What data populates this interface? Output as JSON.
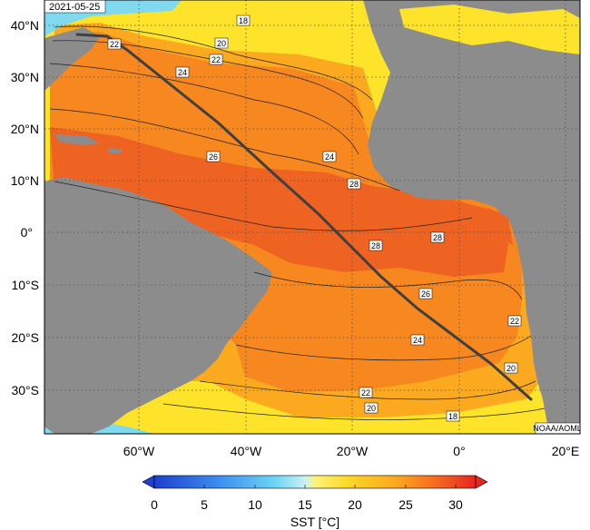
{
  "map": {
    "date_label": "2021-05-25",
    "credit": "NOAA/AOML",
    "lat_labels": [
      "40°N",
      "30°N",
      "20°N",
      "10°N",
      "0°",
      "10°S",
      "20°S",
      "30°S"
    ],
    "lon_labels": [
      "60°W",
      "40°W",
      "20°W",
      "0°",
      "20°E"
    ],
    "isotherm_labels": [
      "18",
      "20",
      "22",
      "24",
      "26",
      "24",
      "28",
      "28",
      "28",
      "26",
      "24",
      "22",
      "20",
      "22",
      "20",
      "18",
      "22"
    ],
    "colorbar": {
      "title": "SST [°C]",
      "ticks": [
        "0",
        "5",
        "10",
        "15",
        "20",
        "25",
        "30"
      ],
      "range": [
        0,
        32
      ]
    },
    "colors": {
      "land": "#8c8c8c",
      "warmest": "#ee4a22",
      "warm": "#f7781f",
      "mid": "#fba91f",
      "cool": "#fde32a",
      "cold": "#7fd9ef",
      "track": "#404040"
    }
  }
}
